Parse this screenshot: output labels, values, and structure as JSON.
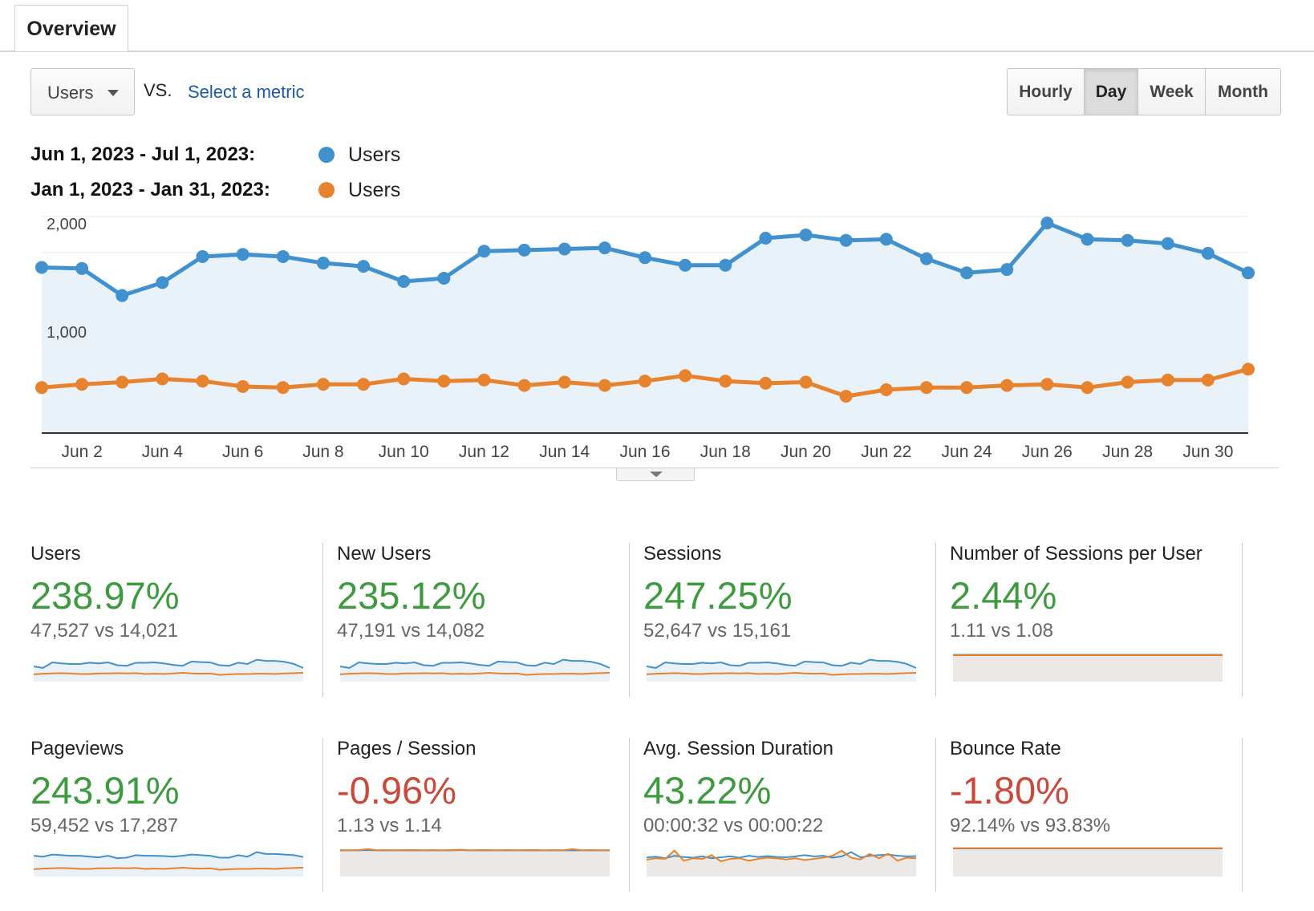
{
  "tabs": [
    {
      "label": "Overview"
    }
  ],
  "toolbar": {
    "metric_select": "Users",
    "vs_label": "VS.",
    "select_metric_link": "Select a metric",
    "granularity": [
      {
        "label": "Hourly",
        "active": false
      },
      {
        "label": "Day",
        "active": true
      },
      {
        "label": "Week",
        "active": false
      },
      {
        "label": "Month",
        "active": false
      }
    ]
  },
  "legend": [
    {
      "range": "Jun 1, 2023 - Jul 1, 2023:",
      "metric": "Users",
      "color": "#4091ce"
    },
    {
      "range": "Jan 1, 2023 - Jan 31, 2023:",
      "metric": "Users",
      "color": "#e8832d"
    }
  ],
  "chart_data": {
    "type": "area",
    "x_tick_labels": [
      "Jun 2",
      "Jun 4",
      "Jun 6",
      "Jun 8",
      "Jun 10",
      "Jun 12",
      "Jun 14",
      "Jun 16",
      "Jun 18",
      "Jun 20",
      "Jun 22",
      "Jun 24",
      "Jun 26",
      "Jun 28",
      "Jun 30"
    ],
    "y_tick_labels": [
      "2,000",
      "1,000"
    ],
    "y_ticks": [
      2000,
      1000
    ],
    "ylim": [
      0,
      2000
    ],
    "x_count": 31,
    "grid": true,
    "series": [
      {
        "name": "Users",
        "range": "Jun 1, 2023 - Jul 1, 2023",
        "color": "#4091ce",
        "values": [
          1530,
          1520,
          1270,
          1390,
          1630,
          1650,
          1630,
          1570,
          1540,
          1400,
          1430,
          1680,
          1690,
          1700,
          1710,
          1620,
          1550,
          1550,
          1800,
          1830,
          1780,
          1790,
          1610,
          1480,
          1510,
          1940,
          1790,
          1780,
          1750,
          1660,
          1480
        ]
      },
      {
        "name": "Users",
        "range": "Jan 1, 2023 - Jan 31, 2023",
        "color": "#e8832d",
        "values": [
          420,
          450,
          470,
          500,
          480,
          430,
          420,
          450,
          450,
          500,
          480,
          490,
          440,
          470,
          440,
          480,
          530,
          480,
          460,
          470,
          340,
          400,
          420,
          420,
          440,
          450,
          420,
          470,
          490,
          490,
          590
        ]
      }
    ]
  },
  "metric_cards": [
    {
      "name": "Users",
      "pct": "238.97%",
      "negative": false,
      "vs": "47,527 vs 14,021",
      "spark": "area",
      "blue": [
        50,
        45,
        63,
        60,
        58,
        58,
        62,
        60,
        63,
        54,
        52,
        62,
        62,
        63,
        60,
        55,
        52,
        66,
        64,
        63,
        54,
        52,
        62,
        58,
        72,
        68,
        68,
        65,
        58,
        45
      ],
      "orange": [
        24,
        26,
        27,
        28,
        27,
        25,
        25,
        27,
        27,
        28,
        27,
        28,
        25,
        26,
        25,
        27,
        29,
        27,
        26,
        27,
        22,
        24,
        25,
        25,
        26,
        26,
        25,
        27,
        28,
        29
      ]
    },
    {
      "name": "New Users",
      "pct": "235.12%",
      "negative": false,
      "vs": "47,191 vs 14,082",
      "spark": "area",
      "blue": [
        50,
        45,
        63,
        60,
        58,
        58,
        62,
        60,
        63,
        54,
        52,
        62,
        62,
        63,
        60,
        55,
        52,
        66,
        64,
        63,
        54,
        52,
        62,
        58,
        72,
        68,
        68,
        65,
        58,
        45
      ],
      "orange": [
        24,
        26,
        27,
        28,
        27,
        25,
        25,
        27,
        27,
        28,
        27,
        28,
        25,
        26,
        25,
        27,
        29,
        27,
        26,
        27,
        22,
        24,
        25,
        25,
        26,
        26,
        25,
        27,
        28,
        29
      ]
    },
    {
      "name": "Sessions",
      "pct": "247.25%",
      "negative": false,
      "vs": "52,647 vs 15,161",
      "spark": "area",
      "blue": [
        50,
        45,
        63,
        60,
        58,
        58,
        62,
        60,
        63,
        54,
        52,
        62,
        62,
        63,
        60,
        55,
        52,
        66,
        64,
        63,
        54,
        52,
        62,
        58,
        72,
        68,
        68,
        65,
        58,
        45
      ],
      "orange": [
        24,
        26,
        27,
        28,
        27,
        25,
        25,
        27,
        27,
        28,
        27,
        28,
        25,
        26,
        25,
        27,
        29,
        27,
        26,
        27,
        22,
        24,
        25,
        25,
        26,
        26,
        25,
        27,
        28,
        29
      ]
    },
    {
      "name": "Number of Sessions per User",
      "pct": "2.44%",
      "negative": false,
      "vs": "1.11 vs 1.08",
      "spark": "flat",
      "blue": [
        88,
        88,
        88,
        88,
        88,
        88,
        88,
        88,
        88,
        88,
        88,
        88,
        88,
        88,
        88,
        88,
        88,
        88,
        88,
        88,
        88,
        88,
        88,
        88,
        88,
        88,
        88,
        88,
        88,
        88
      ],
      "orange": [
        87,
        87,
        87,
        87,
        87,
        87,
        87,
        87,
        87,
        87,
        87,
        87,
        87,
        87,
        87,
        87,
        87,
        87,
        87,
        87,
        87,
        87,
        87,
        87,
        87,
        87,
        87,
        87,
        87,
        87
      ]
    },
    {
      "name": "Pageviews",
      "pct": "243.91%",
      "negative": false,
      "vs": "59,452 vs 17,287",
      "spark": "area",
      "blue": [
        68,
        65,
        72,
        70,
        68,
        68,
        65,
        63,
        68,
        60,
        62,
        70,
        68,
        68,
        67,
        65,
        68,
        72,
        70,
        68,
        62,
        62,
        70,
        65,
        80,
        74,
        74,
        72,
        70,
        64
      ],
      "orange": [
        24,
        26,
        27,
        28,
        27,
        25,
        25,
        27,
        27,
        28,
        27,
        28,
        25,
        26,
        25,
        27,
        29,
        27,
        26,
        27,
        22,
        24,
        25,
        25,
        26,
        26,
        25,
        27,
        28,
        29
      ]
    },
    {
      "name": "Pages / Session",
      "pct": "-0.96%",
      "negative": true,
      "vs": "1.13 vs 1.14",
      "spark": "flat",
      "blue": [
        86,
        86,
        86,
        87,
        86,
        86,
        86,
        86,
        86,
        86,
        86,
        86,
        86,
        87,
        86,
        86,
        86,
        86,
        86,
        86,
        86,
        86,
        86,
        86,
        86,
        86,
        86,
        86,
        86,
        86
      ],
      "orange": [
        87,
        86,
        87,
        90,
        86,
        87,
        86,
        87,
        87,
        86,
        87,
        86,
        87,
        88,
        86,
        87,
        87,
        86,
        87,
        86,
        87,
        87,
        86,
        87,
        86,
        90,
        86,
        87,
        86,
        87
      ]
    },
    {
      "name": "Avg. Session Duration",
      "pct": "43.22%",
      "negative": false,
      "vs": "00:00:32 vs 00:00:22",
      "spark": "flat",
      "blue": [
        62,
        65,
        60,
        68,
        64,
        62,
        66,
        60,
        63,
        66,
        62,
        68,
        64,
        67,
        64,
        63,
        66,
        70,
        66,
        68,
        62,
        66,
        80,
        63,
        68,
        70,
        72,
        68,
        66,
        67
      ],
      "orange": [
        55,
        60,
        58,
        85,
        52,
        60,
        58,
        70,
        50,
        58,
        60,
        52,
        58,
        62,
        60,
        56,
        60,
        54,
        58,
        62,
        68,
        85,
        62,
        56,
        74,
        60,
        75,
        52,
        62,
        60
      ]
    },
    {
      "name": "Bounce Rate",
      "pct": "-1.80%",
      "negative": true,
      "vs": "92.14% vs 93.83%",
      "spark": "flat",
      "blue": [
        92,
        92,
        92,
        92,
        92,
        92,
        92,
        92,
        92,
        92,
        92,
        92,
        92,
        92,
        92,
        92,
        92,
        92,
        92,
        92,
        92,
        92,
        92,
        92,
        92,
        92,
        92,
        92,
        92,
        92
      ],
      "orange": [
        93,
        93,
        93,
        93,
        93,
        93,
        93,
        93,
        93,
        93,
        93,
        93,
        93,
        93,
        93,
        93,
        93,
        93,
        93,
        93,
        93,
        93,
        93,
        93,
        93,
        93,
        93,
        93,
        93,
        93
      ]
    }
  ]
}
